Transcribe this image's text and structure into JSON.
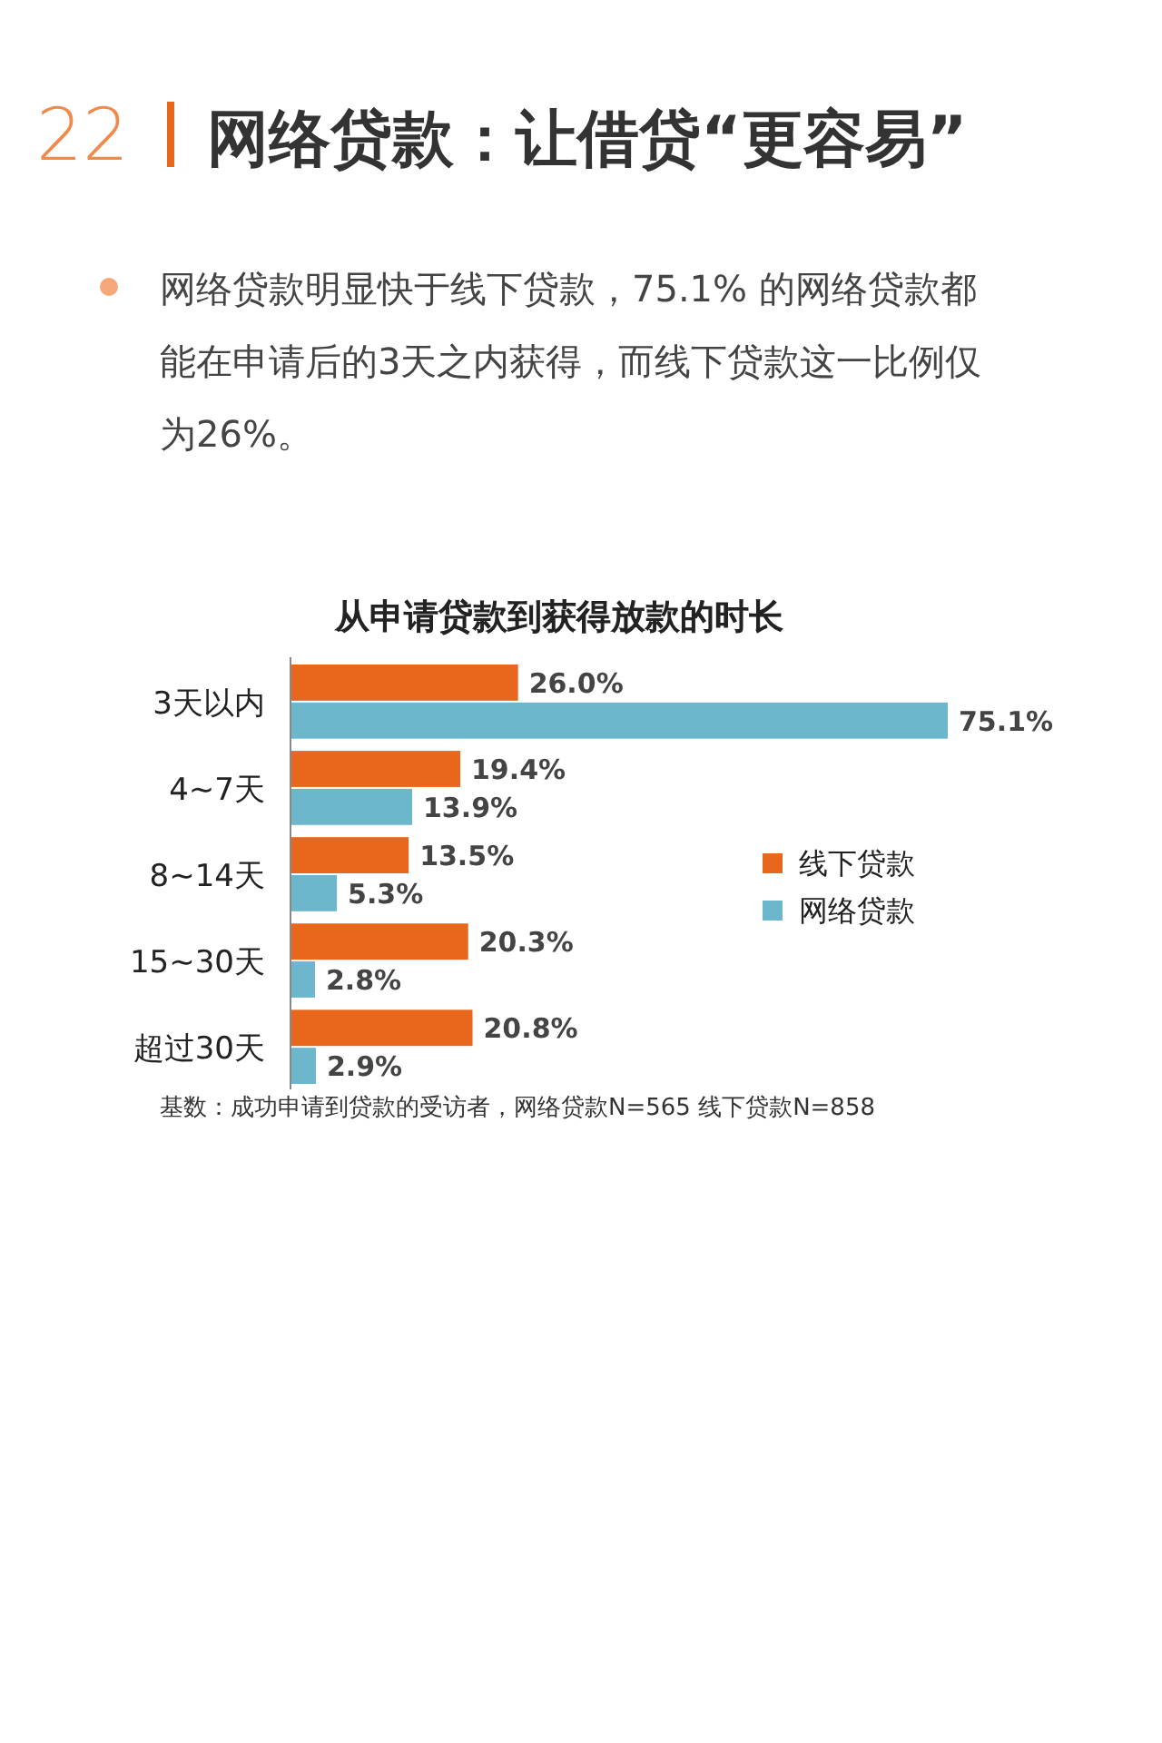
{
  "chart_data": {
    "type": "bar",
    "orientation": "horizontal",
    "title": "网络贷款：让借贷“更容易”",
    "subtitle": "网络贷款明显快于线下贷款，75.1% 的网络贷款都能在申请后的3天之内获得，而线下贷款这一比例仅为26%。",
    "annotations": [
      "22",
      "从申请贷款到获得放款的时长",
      "基数：成功申请到贷款的受访者，网络贷款N=565 线下贷款N=858"
    ],
    "categories": [
      "3天以内",
      "4~7天",
      "8~14天",
      "15~30天",
      "超过30天"
    ],
    "series": [
      {
        "name": "线下贷款",
        "color": "#e8671c",
        "values": [
          26.0,
          19.4,
          13.5,
          20.3,
          20.8
        ],
        "value_labels": [
          "26.0%",
          "19.4%",
          "13.5%",
          "20.3%",
          "20.8%"
        ]
      },
      {
        "name": "网络贷款",
        "color": "#6cb7cb",
        "values": [
          75.1,
          13.9,
          5.3,
          2.8,
          2.9
        ],
        "value_labels": [
          "75.1%",
          "13.9%",
          "5.3%",
          "2.8%",
          "2.9%"
        ]
      }
    ],
    "legend": "right"
  }
}
